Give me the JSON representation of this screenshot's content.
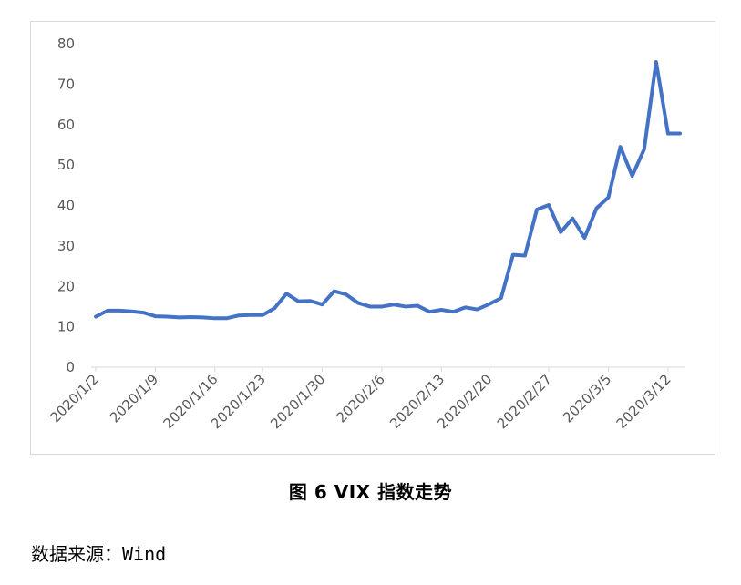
{
  "chart_data": {
    "type": "line",
    "title": "",
    "xlabel": "",
    "ylabel": "",
    "ylim": [
      0,
      80
    ],
    "yticks": [
      0,
      10,
      20,
      30,
      40,
      50,
      60,
      70,
      80
    ],
    "xtick_labels": [
      "2020/1/2",
      "2020/1/9",
      "2020/1/16",
      "2020/1/23",
      "2020/1/30",
      "2020/2/6",
      "2020/2/13",
      "2020/2/20",
      "2020/2/27",
      "2020/3/5",
      "2020/3/12"
    ],
    "grid": false,
    "legend": "none",
    "series": [
      {
        "color": "#4472c4",
        "x": [
          "2020/1/2",
          "2020/1/3",
          "2020/1/6",
          "2020/1/7",
          "2020/1/8",
          "2020/1/9",
          "2020/1/10",
          "2020/1/13",
          "2020/1/14",
          "2020/1/15",
          "2020/1/16",
          "2020/1/17",
          "2020/1/21",
          "2020/1/22",
          "2020/1/23",
          "2020/1/24",
          "2020/1/27",
          "2020/1/28",
          "2020/1/29",
          "2020/1/30",
          "2020/1/31",
          "2020/2/3",
          "2020/2/4",
          "2020/2/5",
          "2020/2/6",
          "2020/2/7",
          "2020/2/10",
          "2020/2/11",
          "2020/2/12",
          "2020/2/13",
          "2020/2/14",
          "2020/2/18",
          "2020/2/19",
          "2020/2/20",
          "2020/2/21",
          "2020/2/24",
          "2020/2/25",
          "2020/2/26",
          "2020/2/27",
          "2020/2/28",
          "2020/3/2",
          "2020/3/3",
          "2020/3/4",
          "2020/3/5",
          "2020/3/6",
          "2020/3/9",
          "2020/3/10",
          "2020/3/11",
          "2020/3/12",
          "2020/3/13"
        ],
        "values": [
          12.5,
          14.0,
          14.0,
          13.8,
          13.5,
          12.6,
          12.5,
          12.3,
          12.4,
          12.3,
          12.1,
          12.1,
          12.8,
          12.9,
          12.9,
          14.6,
          18.2,
          16.3,
          16.4,
          15.5,
          18.8,
          18.0,
          15.9,
          15.0,
          15.0,
          15.5,
          15.0,
          15.2,
          13.7,
          14.2,
          13.7,
          14.8,
          14.3,
          15.6,
          17.1,
          27.8,
          27.6,
          39.0,
          40.1,
          33.4,
          36.8,
          32.0,
          39.3,
          42.0,
          54.5,
          47.3,
          53.9,
          75.5,
          57.8,
          57.8
        ]
      }
    ]
  },
  "caption": "图 6  VIX 指数走势",
  "source": "数据来源：Wind"
}
